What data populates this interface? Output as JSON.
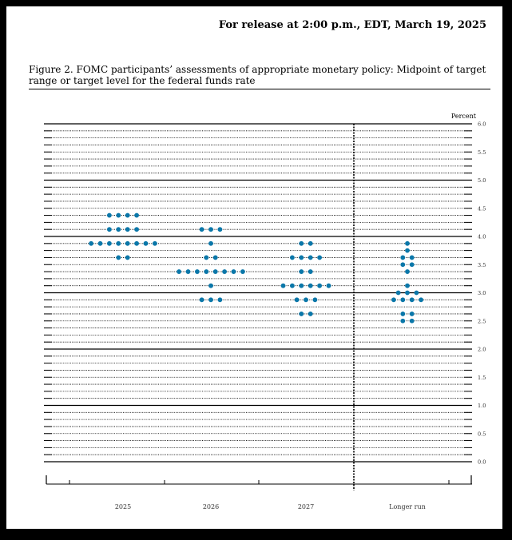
{
  "header": {
    "release_text": "For release at 2:00 p.m., EDT, March 19, 2025"
  },
  "figure": {
    "caption": "Figure 2.  FOMC participants’ assessments of appropriate monetary policy: Midpoint of target range or target level for the federal funds rate"
  },
  "chart_data": {
    "type": "scatter",
    "style": "dot plot",
    "title": "",
    "unit_label": "Percent",
    "categories": [
      "2025",
      "2026",
      "2027",
      "Longer run"
    ],
    "y_axis_side": "right",
    "ylim": [
      0,
      6
    ],
    "yticks": [
      "0.0",
      "0.5",
      "1.0",
      "1.5",
      "2.0",
      "2.5",
      "3.0",
      "3.5",
      "4.0",
      "4.5",
      "5.0",
      "5.5",
      "6.0"
    ],
    "dot_color": "#0a77a9",
    "separator": "dashed vertical line before Longer run",
    "dots": [
      {
        "category": "2025",
        "value": 4.375,
        "count": 4
      },
      {
        "category": "2025",
        "value": 4.125,
        "count": 4
      },
      {
        "category": "2025",
        "value": 3.875,
        "count": 8
      },
      {
        "category": "2025",
        "value": 3.625,
        "count": 2
      },
      {
        "category": "2026",
        "value": 4.125,
        "count": 3
      },
      {
        "category": "2026",
        "value": 3.875,
        "count": 1
      },
      {
        "category": "2026",
        "value": 3.625,
        "count": 2
      },
      {
        "category": "2026",
        "value": 3.375,
        "count": 8
      },
      {
        "category": "2026",
        "value": 3.125,
        "count": 1
      },
      {
        "category": "2026",
        "value": 2.875,
        "count": 3
      },
      {
        "category": "2027",
        "value": 3.875,
        "count": 2
      },
      {
        "category": "2027",
        "value": 3.625,
        "count": 4
      },
      {
        "category": "2027",
        "value": 3.375,
        "count": 2
      },
      {
        "category": "2027",
        "value": 3.125,
        "count": 6
      },
      {
        "category": "2027",
        "value": 2.875,
        "count": 3
      },
      {
        "category": "2027",
        "value": 2.625,
        "count": 2
      },
      {
        "category": "Longer run",
        "value": 3.875,
        "count": 1
      },
      {
        "category": "Longer run",
        "value": 3.75,
        "count": 1
      },
      {
        "category": "Longer run",
        "value": 3.625,
        "count": 2
      },
      {
        "category": "Longer run",
        "value": 3.5,
        "count": 2
      },
      {
        "category": "Longer run",
        "value": 3.375,
        "count": 1
      },
      {
        "category": "Longer run",
        "value": 3.125,
        "count": 1
      },
      {
        "category": "Longer run",
        "value": 3.0,
        "count": 3
      },
      {
        "category": "Longer run",
        "value": 2.875,
        "count": 4
      },
      {
        "category": "Longer run",
        "value": 2.625,
        "count": 2
      },
      {
        "category": "Longer run",
        "value": 2.5,
        "count": 2
      }
    ]
  }
}
